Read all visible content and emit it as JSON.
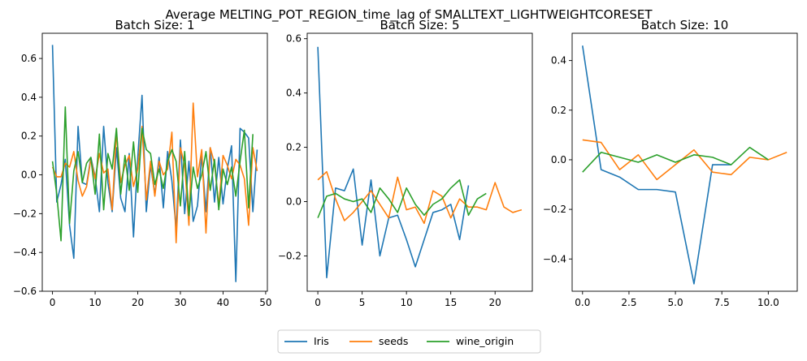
{
  "figure": {
    "title": "Average MELTING_POT_REGION_time_lag of SMALLTEXT_LIGHTWEIGHTCORESET"
  },
  "legend": {
    "placement": "bottom-center",
    "entries": [
      {
        "name": "Iris",
        "color": "#1f77b4"
      },
      {
        "name": "seeds",
        "color": "#ff7f0e"
      },
      {
        "name": "wine_origin",
        "color": "#2ca02c"
      }
    ]
  },
  "chart_data": [
    {
      "type": "line",
      "title": "Batch Size: 1",
      "xlim": [
        -2.4,
        50.4
      ],
      "ylim": [
        -0.6,
        0.73
      ],
      "xticks": [
        0,
        10,
        20,
        30,
        40,
        50
      ],
      "yticks": [
        -0.6,
        -0.4,
        -0.2,
        0.0,
        0.2,
        0.4,
        0.6
      ],
      "series": [
        {
          "name": "Iris",
          "color": "#1f77b4",
          "x_start": 0,
          "values": [
            0.67,
            -0.14,
            -0.05,
            0.08,
            -0.26,
            -0.43,
            0.25,
            -0.04,
            -0.05,
            0.09,
            -0.01,
            -0.19,
            0.25,
            -0.04,
            -0.19,
            0.14,
            -0.12,
            -0.19,
            0.11,
            -0.32,
            0.09,
            0.41,
            -0.19,
            0.05,
            -0.1,
            0.09,
            -0.17,
            0.12,
            -0.03,
            -0.28,
            0.18,
            -0.2,
            0.07,
            -0.24,
            -0.16,
            0.1,
            -0.19,
            0.14,
            -0.14,
            0.09,
            -0.15,
            0.03,
            0.15,
            -0.55,
            0.24,
            0.22,
            0.19,
            -0.19,
            0.13
          ]
        },
        {
          "name": "seeds",
          "color": "#ff7f0e",
          "x_start": 0,
          "values": [
            0.04,
            -0.01,
            -0.01,
            0.06,
            0.04,
            0.12,
            -0.03,
            -0.11,
            -0.06,
            0.08,
            -0.02,
            0.11,
            0.01,
            0.03,
            -0.18,
            0.22,
            -0.04,
            0.05,
            0.1,
            -0.06,
            0.03,
            0.25,
            -0.13,
            0.07,
            -0.11,
            0.07,
            0.0,
            0.03,
            0.22,
            -0.35,
            0.14,
            0.05,
            -0.26,
            0.37,
            -0.01,
            0.13,
            -0.3,
            0.14,
            0.06,
            -0.16,
            0.1,
            0.05,
            -0.02,
            0.08,
            0.05,
            -0.02,
            -0.26,
            0.14,
            0.02
          ]
        },
        {
          "name": "wine_origin",
          "color": "#2ca02c",
          "x_start": 0,
          "values": [
            0.07,
            -0.1,
            -0.34,
            0.35,
            -0.25,
            0.02,
            0.12,
            -0.04,
            0.06,
            0.09,
            -0.1,
            0.21,
            -0.18,
            0.11,
            0.03,
            0.24,
            -0.1,
            0.1,
            -0.08,
            0.17,
            -0.09,
            0.24,
            0.13,
            0.11,
            -0.05,
            0.03,
            -0.07,
            0.07,
            0.13,
            0.07,
            -0.16,
            0.12,
            -0.21,
            0.04,
            -0.07,
            0.0,
            0.12,
            -0.08,
            0.08,
            -0.18,
            0.03,
            -0.05,
            0.04,
            -0.11,
            0.07,
            0.23,
            -0.17,
            0.21
          ]
        }
      ]
    },
    {
      "type": "line",
      "title": "Batch Size: 5",
      "xlim": [
        -1.2,
        24.2
      ],
      "ylim": [
        -0.33,
        0.62
      ],
      "xticks": [
        0,
        5,
        10,
        15,
        20
      ],
      "yticks": [
        -0.2,
        0.0,
        0.2,
        0.4,
        0.6
      ],
      "series": [
        {
          "name": "Iris",
          "color": "#1f77b4",
          "x_start": 0,
          "values": [
            0.57,
            -0.28,
            0.05,
            0.04,
            0.12,
            -0.16,
            0.08,
            -0.2,
            -0.06,
            -0.05,
            -0.14,
            -0.24,
            -0.14,
            -0.04,
            -0.03,
            -0.01,
            -0.14,
            0.06
          ]
        },
        {
          "name": "seeds",
          "color": "#ff7f0e",
          "x_start": 0,
          "values": [
            0.08,
            0.11,
            0.01,
            -0.07,
            -0.04,
            0.0,
            0.04,
            -0.01,
            -0.06,
            0.09,
            -0.03,
            -0.02,
            -0.08,
            0.04,
            0.02,
            -0.06,
            0.01,
            -0.02,
            -0.02,
            -0.03,
            0.07,
            -0.02,
            -0.04,
            -0.03
          ]
        },
        {
          "name": "wine_origin",
          "color": "#2ca02c",
          "x_start": 0,
          "values": [
            -0.06,
            0.02,
            0.03,
            0.01,
            0.0,
            0.01,
            -0.04,
            0.05,
            0.01,
            -0.04,
            0.05,
            -0.01,
            -0.05,
            -0.01,
            0.01,
            0.05,
            0.08,
            -0.05,
            0.01,
            0.03
          ]
        }
      ]
    },
    {
      "type": "line",
      "title": "Batch Size: 10",
      "xlim": [
        -0.56,
        11.56
      ],
      "ylim": [
        -0.53,
        0.51
      ],
      "xticks": [
        0.0,
        2.5,
        5.0,
        7.5,
        10.0
      ],
      "xtick_labels": [
        "0.0",
        "2.5",
        "5.0",
        "7.5",
        "10.0"
      ],
      "yticks": [
        -0.4,
        -0.2,
        0.0,
        0.2,
        0.4
      ],
      "series": [
        {
          "name": "Iris",
          "color": "#1f77b4",
          "x_start": 0,
          "values": [
            0.46,
            -0.04,
            -0.07,
            -0.12,
            -0.12,
            -0.13,
            -0.5,
            -0.02,
            -0.02
          ]
        },
        {
          "name": "seeds",
          "color": "#ff7f0e",
          "x_start": 0,
          "values": [
            0.08,
            0.07,
            -0.04,
            0.02,
            -0.08,
            -0.02,
            0.04,
            -0.05,
            -0.06,
            0.01,
            0.0,
            0.03
          ]
        },
        {
          "name": "wine_origin",
          "color": "#2ca02c",
          "x_start": 0,
          "values": [
            -0.05,
            0.03,
            0.01,
            -0.01,
            0.02,
            -0.01,
            0.02,
            0.01,
            -0.02,
            0.05,
            0.0
          ]
        }
      ]
    }
  ]
}
